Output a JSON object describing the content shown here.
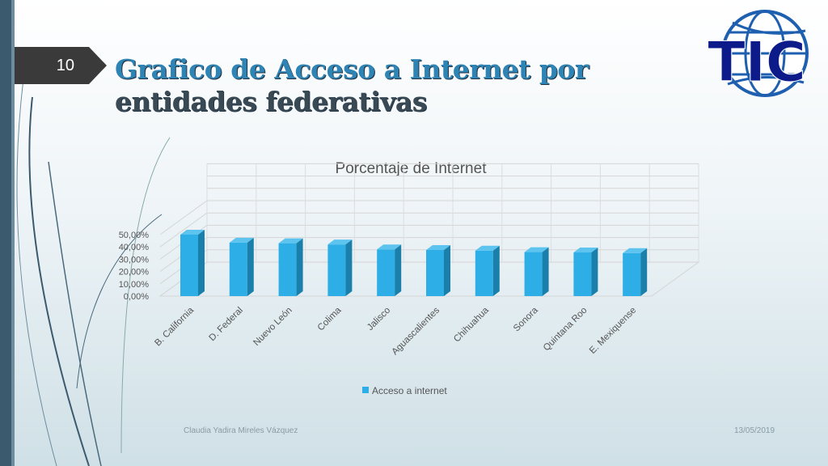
{
  "slide": {
    "number": "10",
    "title_line1": "Grafico de Acceso a Internet por",
    "title_line2": "entidades federativas",
    "author": "Claudia Yadira Mireles Vázquez",
    "date": "13/05/2019",
    "logo_text": "TIC"
  },
  "colors": {
    "bar": "#2eaee6",
    "bar_side": "#1a7faa",
    "bar_top": "#5cc4ef",
    "title": "#2e84b4"
  },
  "chart_data": {
    "type": "bar",
    "title": "Porcentaje de Internet",
    "categories": [
      "B. California",
      "D. Federal",
      "Nuevo León",
      "Colima",
      "Jalisco",
      "Aguascalientes",
      "Chihuahua",
      "Sonora",
      "Quintana Roo",
      "E. Mexiquense"
    ],
    "series": [
      {
        "name": "Acceso a internet",
        "values": [
          50.0,
          43.5,
          43.0,
          42.0,
          38.0,
          37.5,
          37.0,
          35.8,
          35.5,
          35.0
        ]
      }
    ],
    "ylim": [
      0,
      50
    ],
    "y_ticks": [
      "0,00%",
      "10,00%",
      "20,00%",
      "30,00%",
      "40,00%",
      "50,00%"
    ],
    "y_tick_values": [
      0,
      10,
      20,
      30,
      40,
      50
    ],
    "legend_position": "bottom",
    "grid": true
  }
}
